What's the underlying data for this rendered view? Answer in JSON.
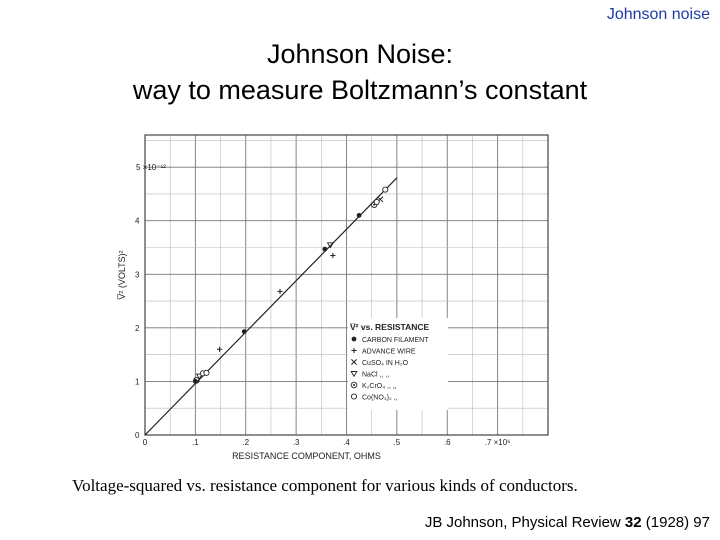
{
  "header": {
    "tag": "Johnson noise"
  },
  "title": {
    "line1": "Johnson Noise:",
    "line2": "way to measure Boltzmann’s constant"
  },
  "chart_data": {
    "type": "scatter",
    "xlabel": "RESISTANCE COMPONENT, OHMS",
    "ylabel": "V̅² (VOLTS)²",
    "xlim": [
      0,
      0.8
    ],
    "ylim": [
      0,
      5.6
    ],
    "x_ticks": [
      "0",
      ".1",
      ".2",
      ".3",
      ".4",
      ".5",
      ".6",
      ".7 ×10⁶"
    ],
    "y_ticks": [
      "0",
      "1",
      "2",
      "3",
      "4",
      "5 ×10⁻¹²"
    ],
    "grid": true,
    "legend_position": "right",
    "legend_title": "V̅² vs. RESISTANCE",
    "fit_line": {
      "x": [
        0,
        0.5
      ],
      "y": [
        0,
        4.8
      ]
    },
    "series": [
      {
        "name": "CARBON FILAMENT",
        "marker": "filled-circle",
        "x": [
          0.1,
          0.197,
          0.357,
          0.425
        ],
        "y": [
          1.0,
          1.93,
          3.47,
          4.1
        ]
      },
      {
        "name": "ADVANCE WIRE",
        "marker": "plus",
        "x": [
          0.148,
          0.268,
          0.373
        ],
        "y": [
          1.6,
          2.68,
          3.35
        ]
      },
      {
        "name": "CuSO₄ IN H₂O",
        "marker": "cross",
        "x": [
          0.467
        ],
        "y": [
          4.4
        ]
      },
      {
        "name": "NaCl  ,,  ,,",
        "marker": "triangle-down",
        "x": [
          0.108,
          0.368
        ],
        "y": [
          1.1,
          3.55
        ]
      },
      {
        "name": "K₂CrO₄  ,,  ,,",
        "marker": "dotted-circle",
        "x": [
          0.102,
          0.455
        ],
        "y": [
          1.02,
          4.3
        ]
      },
      {
        "name": "Co(NO₃)₂  ,,",
        "marker": "open-circle",
        "x": [
          0.115,
          0.122,
          0.46,
          0.477
        ],
        "y": [
          1.15,
          1.16,
          4.35,
          4.58
        ]
      }
    ]
  },
  "caption": "Voltage-squared vs. resistance component for various kinds of conductors.",
  "citation": {
    "text": "JB Johnson, Physical Review ",
    "volume": "32",
    "rest": " (1928) 97"
  }
}
